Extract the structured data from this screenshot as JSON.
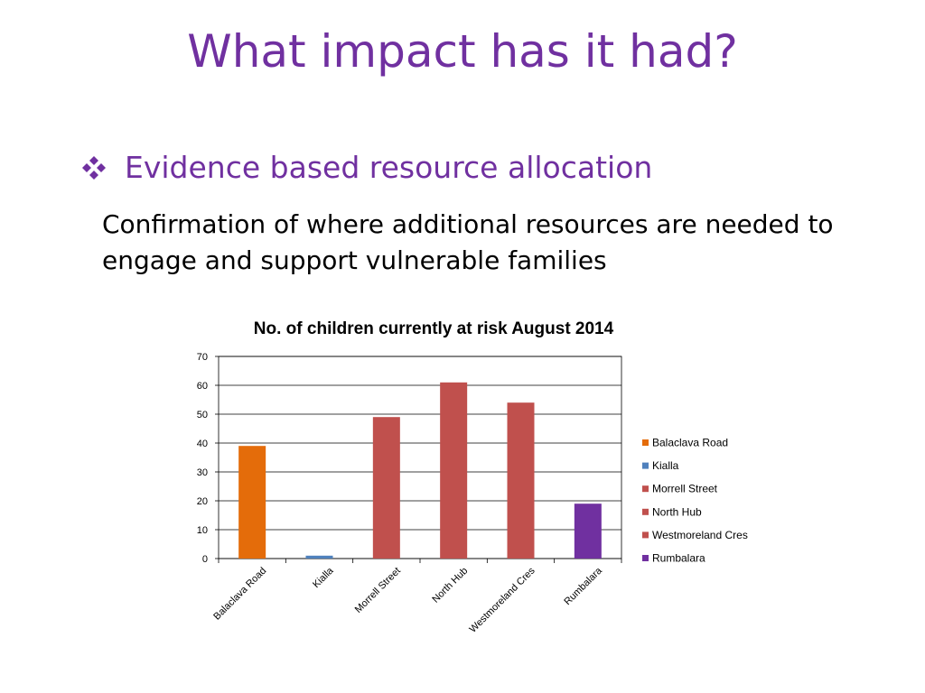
{
  "slide": {
    "title": "What impact has it had?",
    "bullet": "Evidence based resource allocation",
    "body": "Confirmation of where additional resources are needed to engage and support vulnerable families",
    "bullet_icon": "diamond-bullet-icon",
    "accent_color": "#7030a0"
  },
  "chart_data": {
    "type": "bar",
    "title": "No. of children currently at risk August 2014",
    "categories": [
      "Balaclava Road",
      "Kialla",
      "Morrell Street",
      "North Hub",
      "Westmoreland Cres",
      "Rumbalara"
    ],
    "values": [
      39,
      1,
      49,
      61,
      54,
      19
    ],
    "colors": [
      "#e46c0a",
      "#4f81bd",
      "#c0504d",
      "#c0504d",
      "#c0504d",
      "#7030a0"
    ],
    "ylim": [
      0,
      70
    ],
    "yticks": [
      "0",
      "10",
      "20",
      "30",
      "40",
      "50",
      "60",
      "70"
    ],
    "xlabel": "",
    "ylabel": "",
    "grid": true,
    "legend": [
      "Balaclava Road",
      "Kialla",
      "Morrell Street",
      "North Hub",
      "Westmoreland Cres",
      "Rumbalara"
    ],
    "legend_position": "right"
  }
}
